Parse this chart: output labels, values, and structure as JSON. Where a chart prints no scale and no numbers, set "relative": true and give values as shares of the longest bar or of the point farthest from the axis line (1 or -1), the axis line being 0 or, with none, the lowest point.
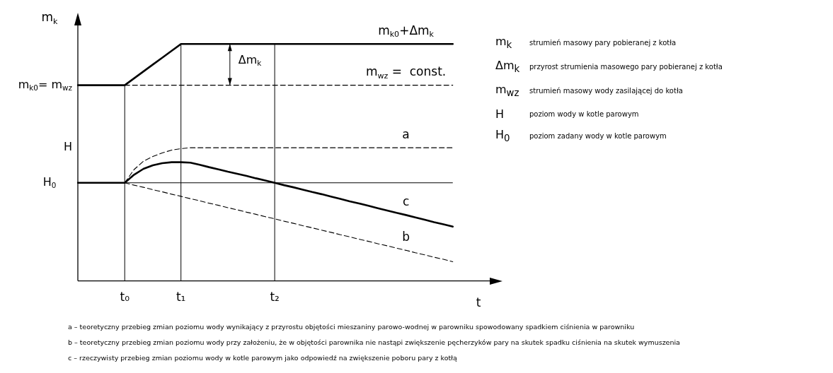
{
  "chart_data": {
    "type": "line",
    "relative": true,
    "ylabel": "m$_{k}$",
    "xlabel": "t",
    "categories": [
      null,
      null,
      null,
      null,
      null,
      "t₀",
      null,
      null,
      null,
      null,
      null,
      "t₁",
      null,
      null,
      null,
      null,
      null,
      null,
      null,
      null,
      null,
      "t₂",
      null,
      null,
      null,
      null,
      null,
      null,
      null,
      null,
      null,
      null,
      null,
      null,
      null,
      null,
      null,
      null,
      null,
      null,
      null,
      null,
      null,
      null,
      null,
      null
    ],
    "grid": false,
    "legend": false,
    "marker": "none",
    "series": [
      {
        "name": "m$_{k0}$+Δm$_{k}$",
        "color": "#000000",
        "line_style": "solid",
        "values": [
          0.826,
          0.826,
          0.826,
          0.826,
          0.826,
          0.826,
          0.855,
          0.884,
          0.913,
          0.942,
          0.971,
          1,
          1,
          1,
          1,
          1,
          1,
          1,
          1,
          1,
          1,
          1,
          1,
          1,
          1,
          1,
          1,
          1,
          1,
          1,
          1,
          1,
          1,
          1,
          1,
          1,
          1,
          1,
          1,
          1,
          1,
          null,
          null,
          null,
          null,
          null
        ]
      },
      {
        "name": "m$_{wz}$ =  const.",
        "color": "#000000",
        "line_style": "dashed",
        "values": [
          null,
          null,
          null,
          null,
          null,
          0.826,
          0.826,
          0.826,
          0.826,
          0.826,
          0.826,
          0.826,
          0.826,
          0.826,
          0.826,
          0.826,
          0.826,
          0.826,
          0.826,
          0.826,
          0.826,
          0.826,
          0.826,
          0.826,
          0.826,
          0.826,
          0.826,
          0.826,
          0.826,
          0.826,
          0.826,
          0.826,
          0.826,
          0.826,
          0.826,
          0.826,
          0.826,
          0.826,
          0.826,
          0.826,
          0.826,
          null,
          null,
          null,
          null,
          null
        ]
      },
      {
        "name": "a",
        "color": "#000000",
        "line_style": "dashed",
        "values": [
          null,
          null,
          null,
          null,
          null,
          0.414,
          0.47,
          0.505,
          0.525,
          0.54,
          0.552,
          0.558,
          0.562,
          0.562,
          0.562,
          0.562,
          0.562,
          0.562,
          0.562,
          0.562,
          0.562,
          0.562,
          0.562,
          0.562,
          0.562,
          0.562,
          0.562,
          0.562,
          0.562,
          0.562,
          0.562,
          0.562,
          0.562,
          0.562,
          0.562,
          0.562,
          0.562,
          0.562,
          0.562,
          0.562,
          0.562,
          null,
          null,
          null,
          null,
          null
        ]
      },
      {
        "name": "c",
        "color": "#000000",
        "line_style": "solid",
        "values": [
          0.414,
          0.414,
          0.414,
          0.414,
          0.414,
          0.414,
          0.448,
          0.473,
          0.488,
          0.497,
          0.501,
          0.501,
          0.499,
          0.49,
          0.48,
          0.471,
          0.461,
          0.452,
          0.443,
          0.433,
          0.424,
          0.414,
          0.404,
          0.395,
          0.385,
          0.375,
          0.366,
          0.356,
          0.346,
          0.336,
          0.327,
          0.317,
          0.307,
          0.297,
          0.287,
          0.278,
          0.268,
          0.258,
          0.248,
          0.239,
          0.229,
          null,
          null,
          null,
          null,
          null
        ]
      },
      {
        "name": "b",
        "color": "#000000",
        "line_style": "dashed",
        "values": [
          null,
          null,
          null,
          null,
          null,
          0.414,
          0.404,
          0.395,
          0.385,
          0.376,
          0.366,
          0.357,
          0.347,
          0.338,
          0.328,
          0.319,
          0.309,
          0.3,
          0.29,
          0.281,
          0.271,
          0.262,
          0.252,
          0.243,
          0.233,
          0.224,
          0.214,
          0.205,
          0.195,
          0.186,
          0.176,
          0.167,
          0.157,
          0.148,
          0.138,
          0.129,
          0.119,
          0.11,
          0.1,
          0.091,
          0.081,
          null,
          null,
          null,
          null,
          null
        ]
      }
    ],
    "ref_lines": [
      {
        "axis": "y",
        "value": 0.414,
        "label": "H$_{0}$",
        "color": "#000000",
        "line_style": "solid"
      }
    ],
    "annotations": [
      "m$_{k0}$= m$_{wz}$",
      "H",
      "Δm$_{k}$",
      "m$_{k}$ strumień masowy pary pobieranej z kotła",
      "Δm$_{k}$ przyrost strumienia masowego pary pobieranej z kotła",
      "m$_{wz}$ strumień masowy wody zasilającej do kotła",
      "H poziom wody w kotle parowym",
      "H$_{0}$ poziom zadany wody w kotle parowym",
      "a – teoretyczny przebieg zmian poziomu wody wynikający z przyrostu objętości mieszaniny parowo-wodnej w parowniku spowodowany spadkiem ciśnienia w parowniku",
      "b – teoretyczny przebieg zmian poziomu wody przy założeniu, że w objętości parownika nie nastąpi zwiększenie pęcherzyków pary na skutek spadku ciśnienia na skutek wymuszenia",
      "c – rzeczywisty przebieg zmian poziomu wody w kotle parowym jako odpowiedź na zwiększenie poboru pary z kotłą"
    ]
  }
}
